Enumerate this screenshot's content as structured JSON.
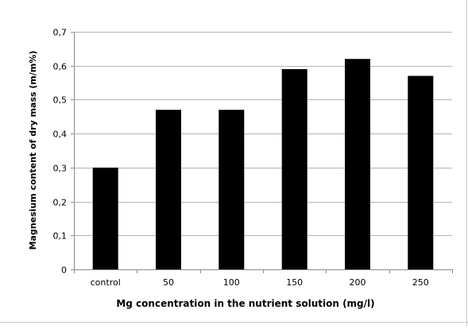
{
  "chart_data": {
    "type": "bar",
    "title": "",
    "categories": [
      "control",
      "50",
      "100",
      "150",
      "200",
      "250"
    ],
    "values": [
      0.3,
      0.47,
      0.47,
      0.59,
      0.62,
      0.57
    ],
    "xlabel": "Mg concentration in the nutrient solution (mg/l)",
    "ylabel": "Magnesium content of dry mass  (m/m%)",
    "ylim": [
      0,
      0.7
    ],
    "yticks": [
      0,
      0.1,
      0.2,
      0.3,
      0.4,
      0.5,
      0.6,
      0.7
    ],
    "ytick_labels": [
      "0",
      "0,1",
      "0,2",
      "0,3",
      "0,4",
      "0,5",
      "0,6",
      "0,7"
    ],
    "grid": true,
    "legend": "none",
    "bar_color": "#000000",
    "grid_color": "#b4b4b4",
    "axis_color": "#8c8c8c"
  }
}
